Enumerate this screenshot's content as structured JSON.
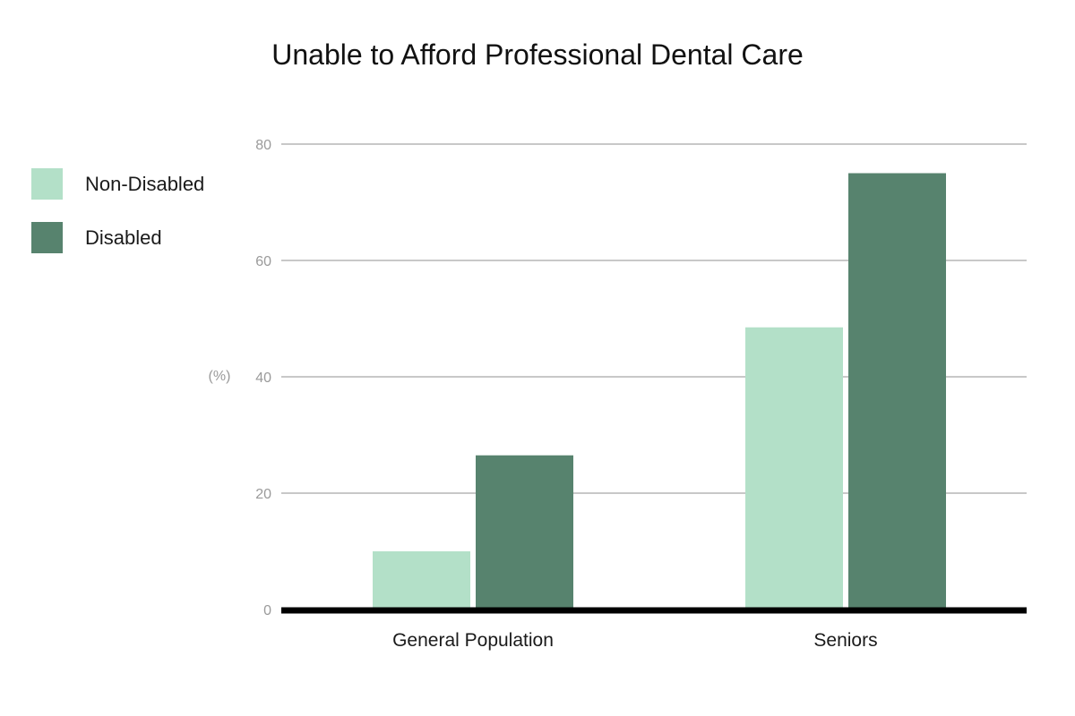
{
  "chart_data": {
    "type": "bar",
    "title": "Unable to Afford Professional Dental Care",
    "xlabel": "",
    "ylabel": "(%)",
    "ylim": [
      0,
      80
    ],
    "yticks": [
      0,
      20,
      40,
      60,
      80
    ],
    "categories": [
      "General Population",
      "Seniors"
    ],
    "series": [
      {
        "name": "Non-Disabled",
        "color": "#b3e0c8",
        "values": [
          10,
          48.5
        ]
      },
      {
        "name": "Disabled",
        "color": "#57836e",
        "values": [
          26.5,
          75
        ]
      }
    ],
    "grid": true,
    "legend_position": "left"
  }
}
